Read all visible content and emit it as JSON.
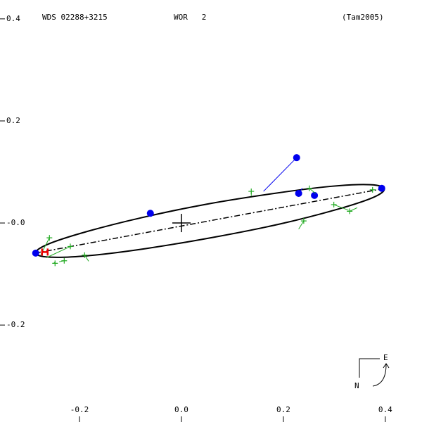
{
  "chart_data": {
    "type": "orbit",
    "title": "WDS 02288+3215",
    "subtitle": "WOR   2",
    "reference": "(Tam2005)",
    "xlim": [
      -0.356,
      0.472
    ],
    "ylim": [
      -0.39,
      0.437
    ],
    "xticks": [
      -0.2,
      {
        "value": 0,
        "label": "0.0"
      },
      0.2,
      0.4
    ],
    "yticks": [
      0.4,
      0.2,
      {
        "value": 0,
        "label": "-0.0"
      },
      -0.2
    ],
    "orbit": {
      "color": "#000000",
      "x": [
        0.398,
        0.376,
        0.303,
        0.193,
        0.063,
        -0.069,
        -0.182,
        -0.258,
        -0.286,
        -0.263,
        -0.19,
        -0.08,
        0.05,
        0.182,
        0.295,
        0.371
      ],
      "values": [
        0.067,
        0.05,
        0.026,
        -0.002,
        -0.028,
        -0.05,
        -0.064,
        -0.067,
        -0.059,
        -0.042,
        -0.018,
        0.01,
        0.037,
        0.058,
        0.072,
        0.075
      ]
    },
    "nodes_line": {
      "color": "#000000",
      "x": [
        -0.287,
        0.4
      ],
      "values": [
        -0.059,
        0.068
      ]
    },
    "series": [
      {
        "color": "#0000ee",
        "marker": "dot",
        "x": [
          -0.286,
          -0.061,
          0.226,
          0.23,
          0.261,
          0.393
        ],
        "values": [
          -0.059,
          0.019,
          0.128,
          0.058,
          0.054,
          0.068
        ],
        "fit_x": [
          -0.286,
          -0.061,
          0.161,
          0.237,
          0.262,
          0.393
        ],
        "fit_y": [
          -0.059,
          0.019,
          0.062,
          0.068,
          0.06,
          0.068
        ]
      },
      {
        "color": "#22aa22",
        "marker": "plus",
        "x": [
          -0.259,
          -0.218,
          -0.248,
          -0.23,
          -0.19,
          0.137,
          0.24,
          0.251,
          0.299,
          0.33,
          0.375
        ],
        "values": [
          -0.029,
          -0.046,
          -0.079,
          -0.074,
          -0.063,
          0.062,
          0.004,
          0.068,
          0.036,
          0.023,
          0.065
        ],
        "fit_x": [
          -0.276,
          -0.265,
          -0.25,
          -0.24,
          -0.182,
          0.137,
          0.23,
          0.263,
          0.328,
          0.345,
          0.375
        ],
        "fit_y": [
          -0.062,
          -0.068,
          -0.077,
          -0.076,
          -0.075,
          0.053,
          -0.012,
          0.058,
          0.025,
          0.03,
          0.067
        ]
      }
    ],
    "hipparcos": {
      "color": "#ee0000",
      "x": -0.268,
      "y": -0.057
    },
    "origin": {
      "x": 0,
      "y": 0
    }
  },
  "compass": {
    "north": "N",
    "east": "E"
  }
}
